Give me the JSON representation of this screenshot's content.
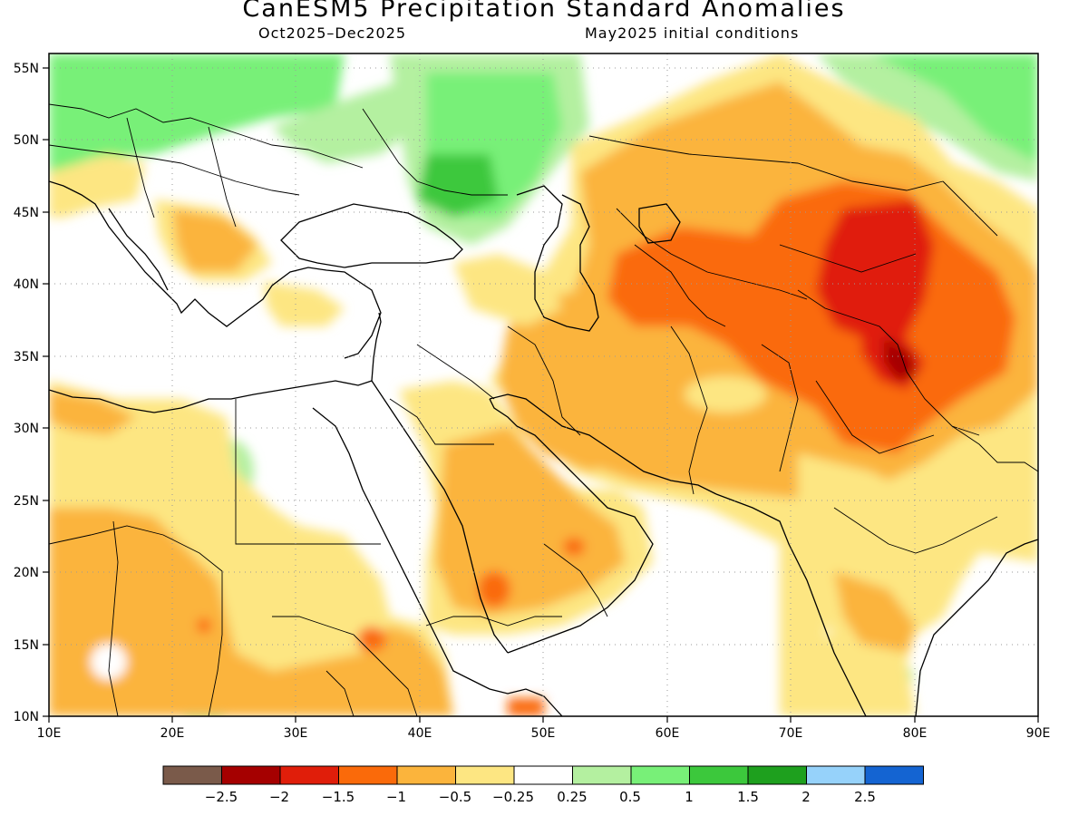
{
  "title": "CanESM5 Precipitation Standard Anomalies",
  "subtitle_left": "Oct2025–Dec2025",
  "subtitle_right": "May2025 initial conditions",
  "map": {
    "lon_range": [
      10,
      90
    ],
    "lat_range": [
      10,
      56
    ],
    "x_ticks": [
      "10E",
      "20E",
      "30E",
      "40E",
      "50E",
      "60E",
      "70E",
      "80E",
      "90E"
    ],
    "y_ticks": [
      "10N",
      "15N",
      "20N",
      "25N",
      "30N",
      "35N",
      "40N",
      "45N",
      "50N",
      "55N"
    ],
    "grid": "dotted"
  },
  "colorbar": {
    "colors": [
      "#7a5a4a",
      "#a50000",
      "#e01e0a",
      "#fa6a0a",
      "#fbb43c",
      "#fde682",
      "#ffffff",
      "#b4f0a0",
      "#78f078",
      "#3cc83c",
      "#1ea01e",
      "#96d2fa",
      "#1464d2"
    ],
    "labels": [
      "−2.5",
      "−2",
      "−1.5",
      "−1",
      "−0.5",
      "−0.25",
      "0.25",
      "0.5",
      "1",
      "1.5",
      "2",
      "2.5"
    ]
  }
}
